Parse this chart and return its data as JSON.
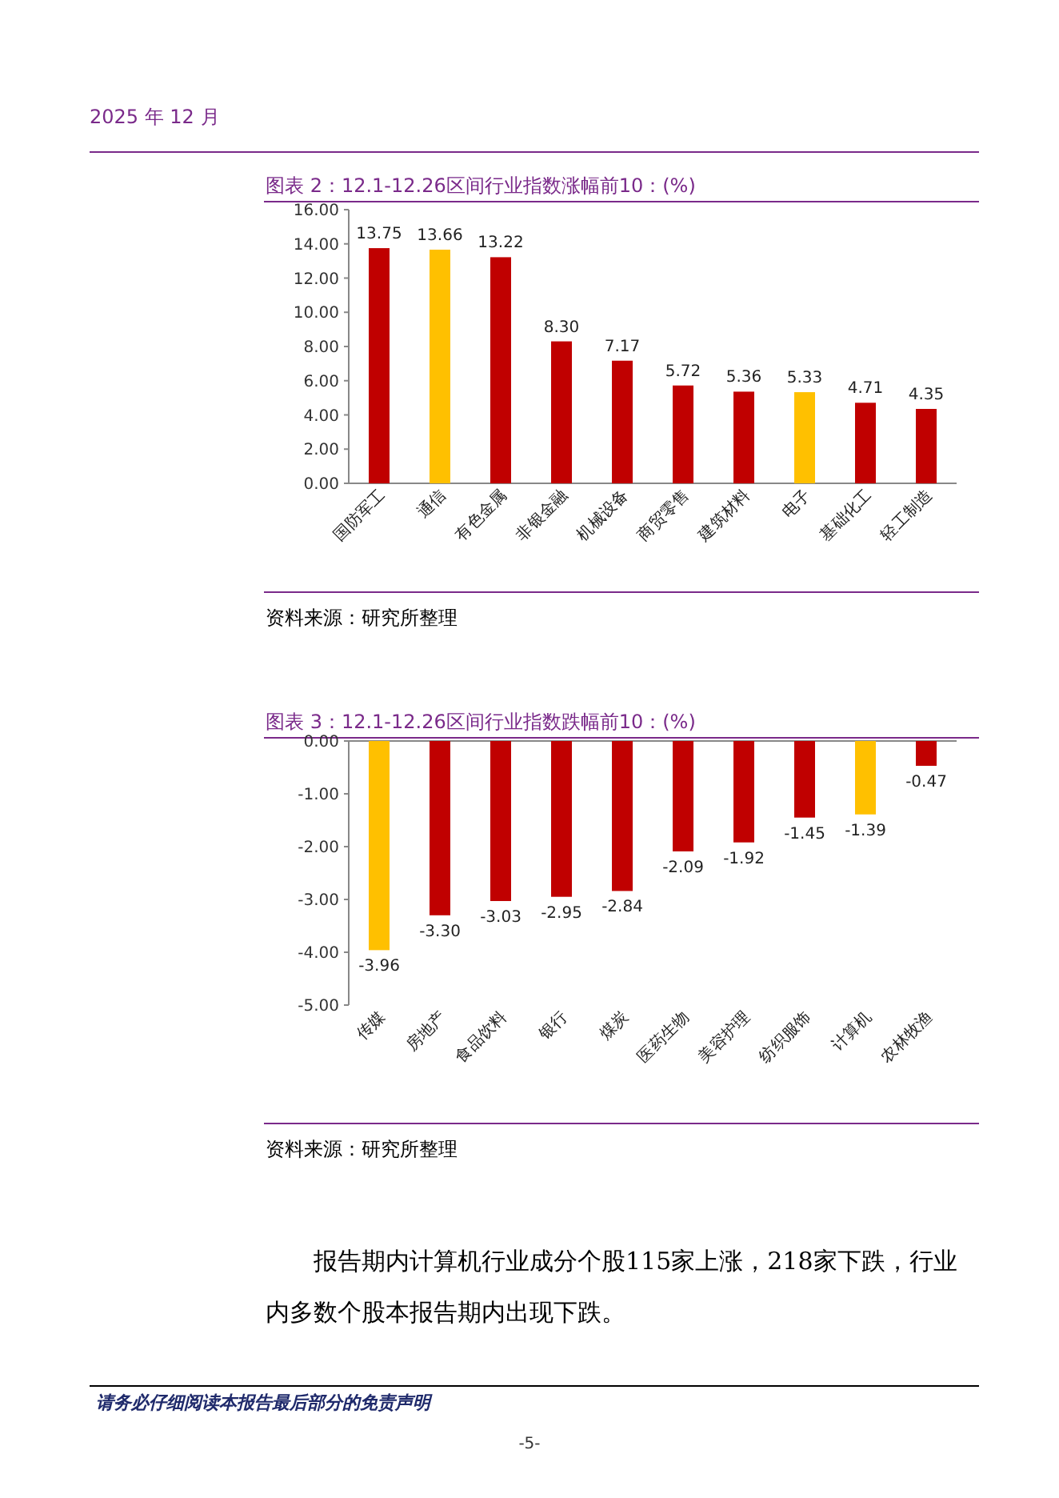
{
  "chart_data": [
    {
      "type": "bar",
      "title": "图表 2：12.1-12.26区间行业指数涨幅前10：(%)",
      "categories": [
        "国防军工",
        "通信",
        "有色金属",
        "非银金融",
        "机械设备",
        "商贸零售",
        "建筑材料",
        "电子",
        "基础化工",
        "轻工制造"
      ],
      "values": [
        13.75,
        13.66,
        13.22,
        8.3,
        7.17,
        5.72,
        5.36,
        5.33,
        4.71,
        4.35
      ],
      "value_labels": [
        "13.75",
        "13.66",
        "13.22",
        "8.30",
        "7.17",
        "5.72",
        "5.36",
        "5.33",
        "4.71",
        "4.35"
      ],
      "colors": [
        "#c00000",
        "#ffc000",
        "#c00000",
        "#c00000",
        "#c00000",
        "#c00000",
        "#c00000",
        "#ffc000",
        "#c00000",
        "#c00000"
      ],
      "ylim": [
        0,
        16
      ],
      "yticks": [
        {
          "value": 0,
          "label": "0.00"
        },
        {
          "value": 2,
          "label": "2.00"
        },
        {
          "value": 4,
          "label": "4.00"
        },
        {
          "value": 6,
          "label": "6.00"
        },
        {
          "value": 8,
          "label": "8.00"
        },
        {
          "value": 10,
          "label": "10.00"
        },
        {
          "value": 12,
          "label": "12.00"
        },
        {
          "value": 14,
          "label": "14.00"
        },
        {
          "value": 16,
          "label": "16.00"
        }
      ],
      "annotations": [
        "2025 年 12 月",
        "资料来源：研究所整理"
      ]
    },
    {
      "type": "bar",
      "title": "图表 3：12.1-12.26区间行业指数跌幅前10：(%)",
      "categories": [
        "传媒",
        "房地产",
        "食品饮料",
        "银行",
        "煤炭",
        "医药生物",
        "美容护理",
        "纺织服饰",
        "计算机",
        "农林牧渔"
      ],
      "values": [
        -3.96,
        -3.3,
        -3.03,
        -2.95,
        -2.84,
        -2.09,
        -1.92,
        -1.45,
        -1.39,
        -0.47
      ],
      "value_labels": [
        "-3.96",
        "-3.30",
        "-3.03",
        "-2.95",
        "-2.84",
        "-2.09",
        "-1.92",
        "-1.45",
        "-1.39",
        "-0.47"
      ],
      "colors": [
        "#ffc000",
        "#c00000",
        "#c00000",
        "#c00000",
        "#c00000",
        "#c00000",
        "#c00000",
        "#c00000",
        "#ffc000",
        "#c00000"
      ],
      "ylim": [
        -5,
        0
      ],
      "yticks": [
        {
          "value": -5,
          "label": "-5.00"
        },
        {
          "value": -4,
          "label": "-4.00"
        },
        {
          "value": -3,
          "label": "-3.00"
        },
        {
          "value": -2,
          "label": "-2.00"
        },
        {
          "value": -1,
          "label": "-1.00"
        },
        {
          "value": 0,
          "label": "0.00"
        }
      ],
      "annotations": [
        "资料来源：研究所整理",
        "报告期内计算机行业成分个股115家上涨，218家下跌，行业内多数个股本报告期内出现下跌。",
        "请务必仔细阅读本报告最后部分的免责声明",
        "-5-"
      ]
    }
  ]
}
